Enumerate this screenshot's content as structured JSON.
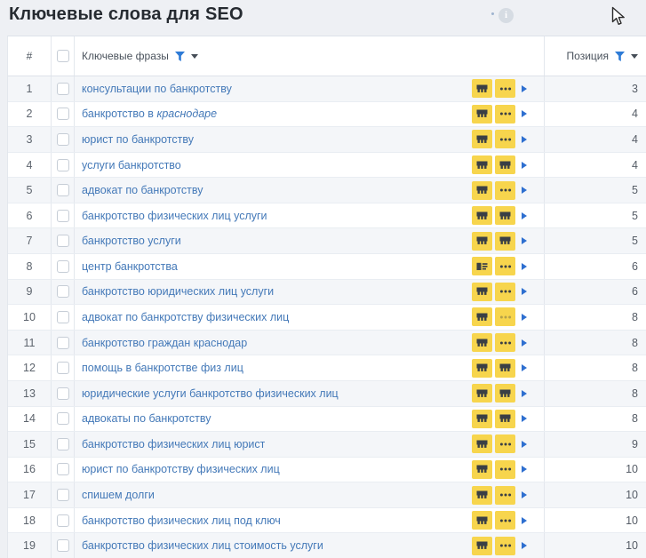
{
  "page": {
    "title": "Ключевые слова для SEO"
  },
  "header": {
    "number_label": "#",
    "phrase_label": "Ключевые фразы",
    "position_label": "Позиция"
  },
  "colors": {
    "action_button_yellow": "#f7d54d",
    "keyword_link_blue": "#4479b8",
    "filter_funnel_blue": "#2e7bd6",
    "expand_arrow_blue": "#2e6fd0",
    "alt_row_background": "#f4f6f9"
  },
  "icons": {
    "info": "info-icon",
    "filter": "filter-funnel-icon",
    "caret": "caret-down-icon",
    "histogram": "frequency-histogram-icon",
    "ellipsis": "ellipsis-menu-icon",
    "list": "details-list-icon",
    "expand": "expand-arrow-icon",
    "cursor": "mouse-cursor"
  },
  "table": {
    "rows": [
      {
        "n": "1",
        "phrase": "консультации по банкротству",
        "phrase_italic": "",
        "icons": [
          "histogram",
          "ellipsis"
        ],
        "position": "3"
      },
      {
        "n": "2",
        "phrase": "банкротство в ",
        "phrase_italic": "краснодаре",
        "icons": [
          "histogram",
          "ellipsis"
        ],
        "position": "4"
      },
      {
        "n": "3",
        "phrase": "юрист по банкротству",
        "phrase_italic": "",
        "icons": [
          "histogram",
          "ellipsis"
        ],
        "position": "4"
      },
      {
        "n": "4",
        "phrase": "услуги банкротство",
        "phrase_italic": "",
        "icons": [
          "histogram",
          "histogram"
        ],
        "position": "4"
      },
      {
        "n": "5",
        "phrase": "адвокат по банкротству",
        "phrase_italic": "",
        "icons": [
          "histogram",
          "ellipsis"
        ],
        "position": "5"
      },
      {
        "n": "6",
        "phrase": "банкротство физических лиц услуги",
        "phrase_italic": "",
        "icons": [
          "histogram",
          "histogram"
        ],
        "position": "5"
      },
      {
        "n": "7",
        "phrase": "банкротство услуги",
        "phrase_italic": "",
        "icons": [
          "histogram",
          "histogram"
        ],
        "position": "5"
      },
      {
        "n": "8",
        "phrase": "центр банкротства",
        "phrase_italic": "",
        "icons": [
          "list",
          "ellipsis"
        ],
        "position": "6"
      },
      {
        "n": "9",
        "phrase": "банкротство юридических лиц услуги",
        "phrase_italic": "",
        "icons": [
          "histogram",
          "ellipsis"
        ],
        "position": "6"
      },
      {
        "n": "10",
        "phrase": "адвокат по банкротству физических лиц",
        "phrase_italic": "",
        "icons": [
          "histogram",
          "ellipsis-muted"
        ],
        "position": "8"
      },
      {
        "n": "11",
        "phrase": "банкротство граждан краснодар",
        "phrase_italic": "",
        "icons": [
          "histogram",
          "ellipsis"
        ],
        "position": "8"
      },
      {
        "n": "12",
        "phrase": "помощь в банкротстве физ лиц",
        "phrase_italic": "",
        "icons": [
          "histogram",
          "histogram"
        ],
        "position": "8"
      },
      {
        "n": "13",
        "phrase": "юридические услуги банкротство физических лиц",
        "phrase_italic": "",
        "icons": [
          "histogram",
          "histogram"
        ],
        "position": "8"
      },
      {
        "n": "14",
        "phrase": "адвокаты по банкротству",
        "phrase_italic": "",
        "icons": [
          "histogram",
          "histogram"
        ],
        "position": "8"
      },
      {
        "n": "15",
        "phrase": "банкротство физических лиц юрист",
        "phrase_italic": "",
        "icons": [
          "histogram",
          "ellipsis"
        ],
        "position": "9"
      },
      {
        "n": "16",
        "phrase": "юрист по банкротству физических лиц",
        "phrase_italic": "",
        "icons": [
          "histogram",
          "ellipsis"
        ],
        "position": "10"
      },
      {
        "n": "17",
        "phrase": "спишем долги",
        "phrase_italic": "",
        "icons": [
          "histogram",
          "ellipsis"
        ],
        "position": "10"
      },
      {
        "n": "18",
        "phrase": "банкротство физических лиц под ключ",
        "phrase_italic": "",
        "icons": [
          "histogram",
          "ellipsis"
        ],
        "position": "10"
      },
      {
        "n": "19",
        "phrase": "банкротство физических лиц стоимость услуги",
        "phrase_italic": "",
        "icons": [
          "histogram",
          "ellipsis"
        ],
        "position": "10"
      }
    ]
  }
}
